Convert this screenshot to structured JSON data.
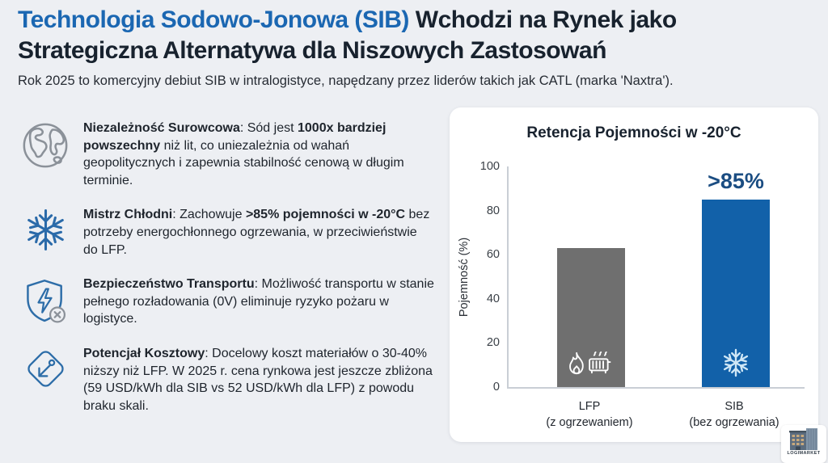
{
  "header": {
    "title_highlight": "Technologia Sodowo-Jonowa (SIB)",
    "title_rest_line1": " Wchodzi na Rynek jako",
    "title_line2": "Strategiczna Alternatywa dla Niszowych Zastosowań",
    "subtitle": "Rok 2025 to komercyjny debiut SIB w intralogistyce, napędzany przez liderów takich jak CATL (marka 'Naxtra')."
  },
  "features": [
    {
      "icon": "globe-icon",
      "segments": [
        {
          "text": "Niezależność Surowcowa",
          "bold": true
        },
        {
          "text": ": Sód jest ",
          "bold": false
        },
        {
          "text": "1000x bardziej powszechny",
          "bold": true
        },
        {
          "text": " niż lit, co uniezależnia od wahań geopolitycznych i zapewnia stabilność cenową w długim terminie.",
          "bold": false
        }
      ]
    },
    {
      "icon": "snowflake-icon",
      "segments": [
        {
          "text": "Mistrz Chłodni",
          "bold": true
        },
        {
          "text": ": Zachowuje ",
          "bold": false
        },
        {
          "text": ">85% pojemności w -20°C",
          "bold": true
        },
        {
          "text": " bez potrzeby energochłonnego ogrzewania, w przeciwieństwie do LFP.",
          "bold": false
        }
      ]
    },
    {
      "icon": "shield-zap-icon",
      "segments": [
        {
          "text": "Bezpieczeństwo Transportu",
          "bold": true
        },
        {
          "text": ": Możliwość transportu w stanie pełnego rozładowania (0V) eliminuje ryzyko pożaru w logistyce.",
          "bold": false
        },
        {
          "text": "",
          "bold": true
        },
        {
          "text": "",
          "bold": false
        }
      ]
    },
    {
      "icon": "price-tag-icon",
      "segments": [
        {
          "text": "Potencjał Kosztowy",
          "bold": true
        },
        {
          "text": ": Docelowy koszt materiałów o 30-40% niższy niż LFP. W 2025 r. cena rynkowa jest jeszcze zbliżona (59 USD/kWh dla SIB vs 52 USD/kWh dla LFP) z powodu braku skali.",
          "bold": false
        },
        {
          "text": "",
          "bold": true
        },
        {
          "text": "",
          "bold": false
        }
      ]
    }
  ],
  "chart_data": {
    "type": "bar",
    "title": "Retencja Pojemności w -20°C",
    "ylabel": "Pojemność (%)",
    "xlabel": "",
    "ylim": [
      0,
      100
    ],
    "yticks": [
      "0",
      "20",
      "40",
      "60",
      "80",
      "100"
    ],
    "categories": [
      "LFP",
      "SIB"
    ],
    "category_notes": [
      "(z ogrzewaniem)",
      "(bez ogrzewania)"
    ],
    "values": [
      63,
      85
    ],
    "bar_colors": [
      "#6f6f6f",
      "#1261a9"
    ],
    "annotations": [
      "",
      ">85%"
    ],
    "annotation_color": "#1b4d82",
    "bar_icons": [
      "flame-and-radiator-icon",
      "snowflake-icon"
    ],
    "grid": false,
    "legend": false
  },
  "branding": {
    "logo_text": "LOGIMARKET"
  },
  "colors": {
    "background": "#edeff3",
    "accent_blue": "#1b67b2",
    "title_dark": "#18222e",
    "icon_gray": "#8b9199",
    "icon_blue": "#2d6da8",
    "bar_gray": "#6f6f6f",
    "bar_blue": "#1261a9",
    "card_white": "#ffffff"
  }
}
